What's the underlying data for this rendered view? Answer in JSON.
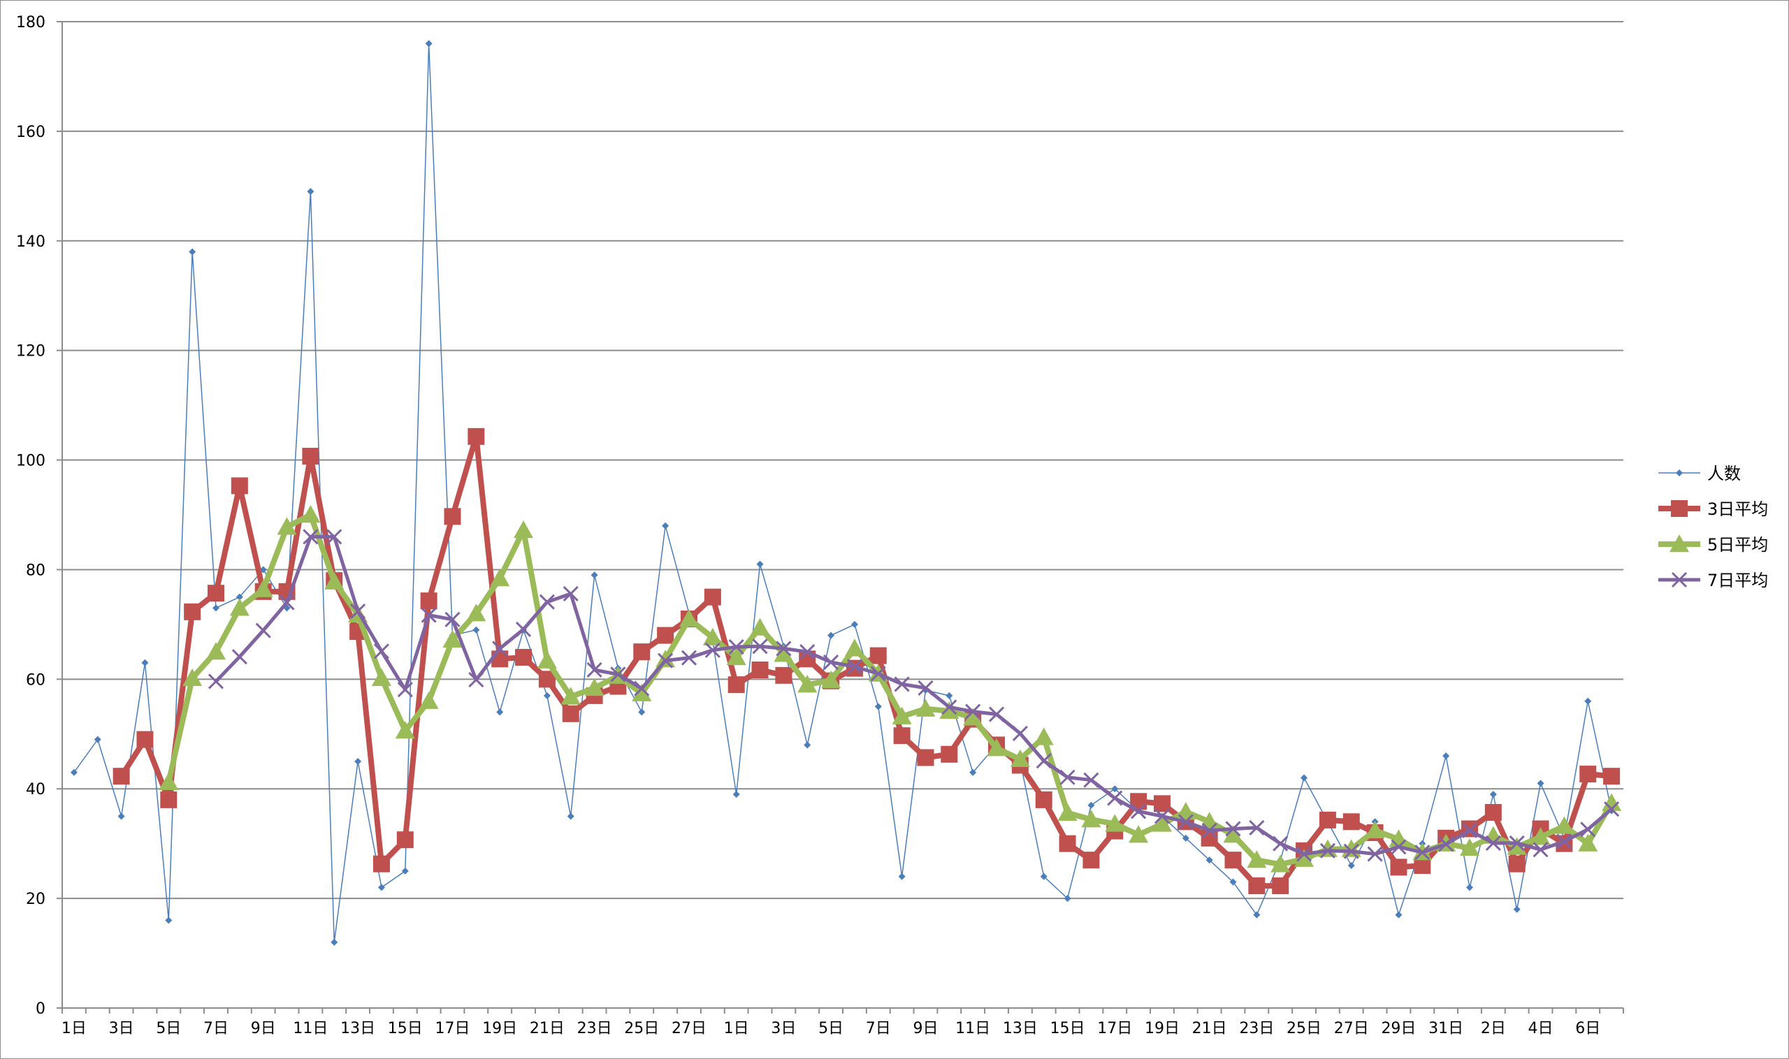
{
  "chart_data": {
    "type": "line",
    "title": "",
    "xlabel": "",
    "ylabel": "",
    "ylim": [
      0,
      180
    ],
    "yticks": [
      0,
      20,
      40,
      60,
      80,
      100,
      120,
      140,
      160,
      180
    ],
    "grid": true,
    "legend_position": "right",
    "x_tick_labels": [
      "1日",
      "3日",
      "5日",
      "7日",
      "9日",
      "11日",
      "13日",
      "15日",
      "17日",
      "19日",
      "21日",
      "23日",
      "25日",
      "27日",
      "1日",
      "3日",
      "5日",
      "7日",
      "9日",
      "11日",
      "13日",
      "15日",
      "17日",
      "19日",
      "21日",
      "23日",
      "25日",
      "27日",
      "29日",
      "31日",
      "2日",
      "4日",
      "6日"
    ],
    "series": [
      {
        "name": "人数",
        "color": "#4a7ebb",
        "marker": "diamond",
        "values": [
          43,
          49,
          35,
          63,
          16,
          138,
          73,
          75,
          80,
          73,
          149,
          12,
          45,
          22,
          25,
          176,
          68,
          69,
          54,
          69,
          57,
          35,
          79,
          62,
          54,
          88,
          72,
          67,
          39,
          81,
          66,
          48,
          68,
          70,
          55,
          24,
          58,
          57,
          43,
          48,
          45,
          24,
          20,
          37,
          40,
          36,
          35,
          31,
          27,
          23,
          17,
          27,
          42,
          34,
          26,
          34,
          17,
          30,
          46,
          22,
          39,
          18,
          41,
          31,
          56,
          36
        ]
      },
      {
        "name": "3日平均",
        "color": "#c0504d",
        "marker": "square",
        "values": [
          null,
          null,
          42.3,
          49,
          38,
          72.3,
          75.7,
          95.3,
          76,
          76,
          100.7,
          78,
          68.7,
          26.3,
          30.7,
          74.3,
          89.7,
          104.3,
          63.7,
          64,
          60,
          53.7,
          57,
          58.7,
          65,
          68,
          71,
          75,
          59,
          61.7,
          60.7,
          63.7,
          59.7,
          62,
          64.3,
          49.7,
          45.7,
          46.3,
          52.7,
          48,
          44.3,
          38,
          30,
          27,
          32.3,
          37.7,
          37.3,
          34,
          31,
          27,
          22.3,
          22.3,
          28.7,
          34.3,
          34,
          32,
          25.7,
          26,
          31,
          32.7,
          35.7,
          26.3,
          32.7,
          30,
          42.7,
          42.3
        ]
      },
      {
        "name": "5日平均",
        "color": "#9bbb59",
        "marker": "triangle",
        "values": [
          null,
          null,
          null,
          null,
          41.2,
          60.2,
          65,
          73,
          76.4,
          87.8,
          90,
          77.8,
          71.8,
          60.2,
          50.6,
          56,
          67.2,
          72,
          78.4,
          87.2,
          63.4,
          56.8,
          58.4,
          60.6,
          57.4,
          63.6,
          71,
          67.6,
          64,
          69.4,
          64.6,
          59,
          59.8,
          65.6,
          61,
          53.2,
          54.6,
          54.2,
          53,
          47.4,
          45.4,
          49.4,
          35.6,
          34.4,
          33.6,
          31.6,
          33.6,
          35.8,
          34,
          31.6,
          27,
          26.2,
          27.2,
          29,
          29,
          32.4,
          30.8,
          28.4,
          30,
          29.2,
          31.4,
          29.4,
          31.2,
          33.2,
          30,
          37.4
        ]
      },
      {
        "name": "7日平均",
        "color": "#8064a2",
        "marker": "x",
        "values": [
          null,
          null,
          null,
          null,
          null,
          null,
          59.6,
          64.1,
          68.9,
          74,
          86,
          86,
          72.4,
          65.1,
          58.1,
          71.7,
          70.9,
          59.9,
          65.6,
          69.1,
          74.1,
          75.6,
          61.7,
          60.9,
          58.3,
          63.4,
          63.9,
          65.3,
          65.9,
          66,
          65.6,
          65,
          63.1,
          62.3,
          61,
          59.1,
          58.4,
          54.9,
          54.1,
          53.6,
          50.1,
          45.1,
          42.1,
          41.6,
          38.3,
          35.9,
          35,
          34,
          32.4,
          32.7,
          32.9,
          30,
          28.1,
          28.7,
          28.6,
          28.1,
          29.4,
          28.4,
          29.9,
          32.4,
          30.1,
          30.1,
          28.9,
          30.4,
          32.6,
          36.3
        ]
      }
    ]
  }
}
